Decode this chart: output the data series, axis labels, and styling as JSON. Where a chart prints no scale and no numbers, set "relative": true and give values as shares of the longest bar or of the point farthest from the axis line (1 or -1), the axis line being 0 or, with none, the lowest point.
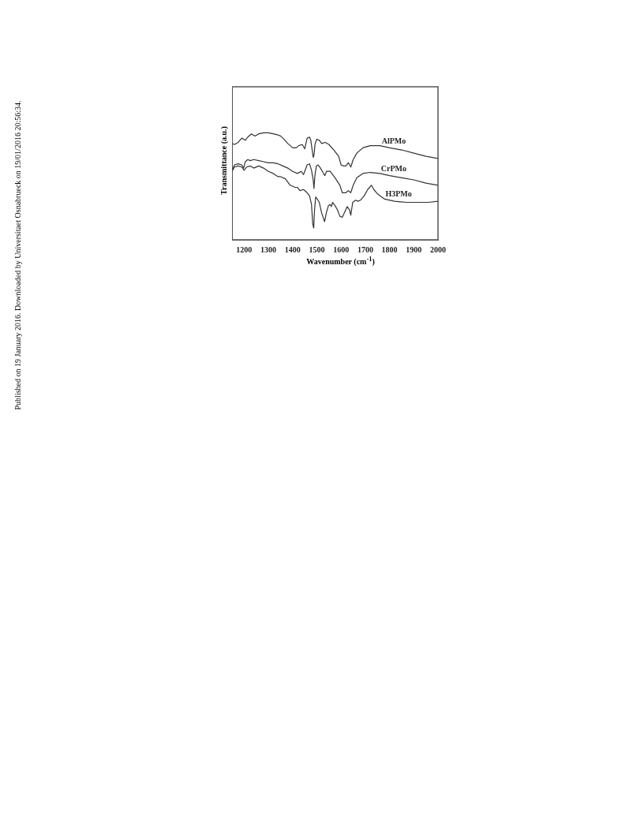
{
  "chart_data": {
    "type": "line",
    "xlabel": "Wavenumber (cm$^{-1}$)",
    "ylabel": "Transmittance (a.u.)",
    "relative": true,
    "xlim": [
      1150,
      2000
    ],
    "xticks": [
      1200,
      1300,
      1400,
      1500,
      1600,
      1700,
      1800,
      1900,
      2000
    ],
    "tick_labels": "x",
    "grid": false,
    "legend": false,
    "marker": "none",
    "line_style": "solid",
    "annotations": [
      "Published on 19 January 2016. Downloaded by Universitaet Osnabrueck on 19/01/2016 20:56:34."
    ],
    "series": [
      {
        "name": "AlPMo",
        "color": "#333333",
        "x": [
          1150,
          1160,
          1175,
          1190,
          1205,
          1215,
          1230,
          1245,
          1260,
          1280,
          1300,
          1320,
          1340,
          1350,
          1360,
          1380,
          1400,
          1415,
          1425,
          1440,
          1450,
          1460,
          1470,
          1475,
          1480,
          1485,
          1488,
          1493,
          1500,
          1510,
          1520,
          1535,
          1550,
          1570,
          1590,
          1600,
          1610,
          1620,
          1630,
          1640,
          1650,
          1665,
          1690,
          1720,
          1760,
          1800,
          1850,
          1900,
          1950,
          2000
        ],
        "values": [
          0.9,
          0.89,
          0.91,
          0.95,
          0.93,
          0.96,
          0.99,
          0.97,
          0.99,
          1.0,
          1.0,
          0.99,
          0.98,
          0.97,
          0.95,
          0.9,
          0.86,
          0.86,
          0.88,
          0.89,
          0.85,
          0.95,
          0.96,
          0.93,
          0.85,
          0.77,
          0.79,
          0.9,
          0.94,
          0.93,
          0.9,
          0.91,
          0.89,
          0.84,
          0.78,
          0.7,
          0.69,
          0.69,
          0.72,
          0.68,
          0.75,
          0.81,
          0.86,
          0.88,
          0.88,
          0.86,
          0.84,
          0.81,
          0.78,
          0.76
        ]
      },
      {
        "name": "CrPMo",
        "color": "#333333",
        "x": [
          1150,
          1160,
          1175,
          1190,
          1198,
          1205,
          1215,
          1225,
          1240,
          1260,
          1280,
          1300,
          1320,
          1340,
          1360,
          1380,
          1400,
          1420,
          1435,
          1445,
          1460,
          1470,
          1478,
          1485,
          1488,
          1492,
          1498,
          1505,
          1515,
          1525,
          1533,
          1540,
          1555,
          1575,
          1595,
          1605,
          1620,
          1630,
          1640,
          1650,
          1665,
          1690,
          1720,
          1760,
          1800,
          1850,
          1900,
          1950,
          2000
        ],
        "values": [
          0.64,
          0.7,
          0.71,
          0.7,
          0.67,
          0.73,
          0.75,
          0.74,
          0.75,
          0.74,
          0.73,
          0.72,
          0.72,
          0.71,
          0.69,
          0.67,
          0.64,
          0.62,
          0.64,
          0.61,
          0.7,
          0.71,
          0.65,
          0.56,
          0.48,
          0.6,
          0.69,
          0.7,
          0.67,
          0.63,
          0.6,
          0.64,
          0.64,
          0.58,
          0.51,
          0.44,
          0.44,
          0.46,
          0.44,
          0.51,
          0.58,
          0.62,
          0.63,
          0.62,
          0.6,
          0.58,
          0.56,
          0.53,
          0.51
        ]
      },
      {
        "name": "H3PMo",
        "color": "#333333",
        "x": [
          1150,
          1160,
          1175,
          1190,
          1200,
          1210,
          1225,
          1240,
          1260,
          1280,
          1300,
          1320,
          1340,
          1350,
          1370,
          1390,
          1410,
          1420,
          1430,
          1445,
          1460,
          1470,
          1478,
          1483,
          1487,
          1490,
          1495,
          1502,
          1510,
          1520,
          1532,
          1540,
          1548,
          1555,
          1560,
          1565,
          1575,
          1585,
          1595,
          1605,
          1615,
          1625,
          1635,
          1640,
          1648,
          1660,
          1670,
          1680,
          1695,
          1710,
          1725,
          1735,
          1750,
          1780,
          1820,
          1870,
          1920,
          1960,
          2000
        ],
        "values": [
          0.64,
          0.68,
          0.69,
          0.68,
          0.65,
          0.68,
          0.69,
          0.67,
          0.69,
          0.67,
          0.64,
          0.62,
          0.59,
          0.59,
          0.57,
          0.51,
          0.49,
          0.49,
          0.46,
          0.47,
          0.44,
          0.41,
          0.33,
          0.15,
          0.11,
          0.26,
          0.4,
          0.38,
          0.35,
          0.25,
          0.17,
          0.26,
          0.32,
          0.33,
          0.31,
          0.35,
          0.32,
          0.28,
          0.22,
          0.21,
          0.26,
          0.31,
          0.28,
          0.23,
          0.35,
          0.37,
          0.36,
          0.37,
          0.41,
          0.47,
          0.51,
          0.47,
          0.43,
          0.38,
          0.36,
          0.35,
          0.35,
          0.35,
          0.36
        ]
      }
    ]
  }
}
